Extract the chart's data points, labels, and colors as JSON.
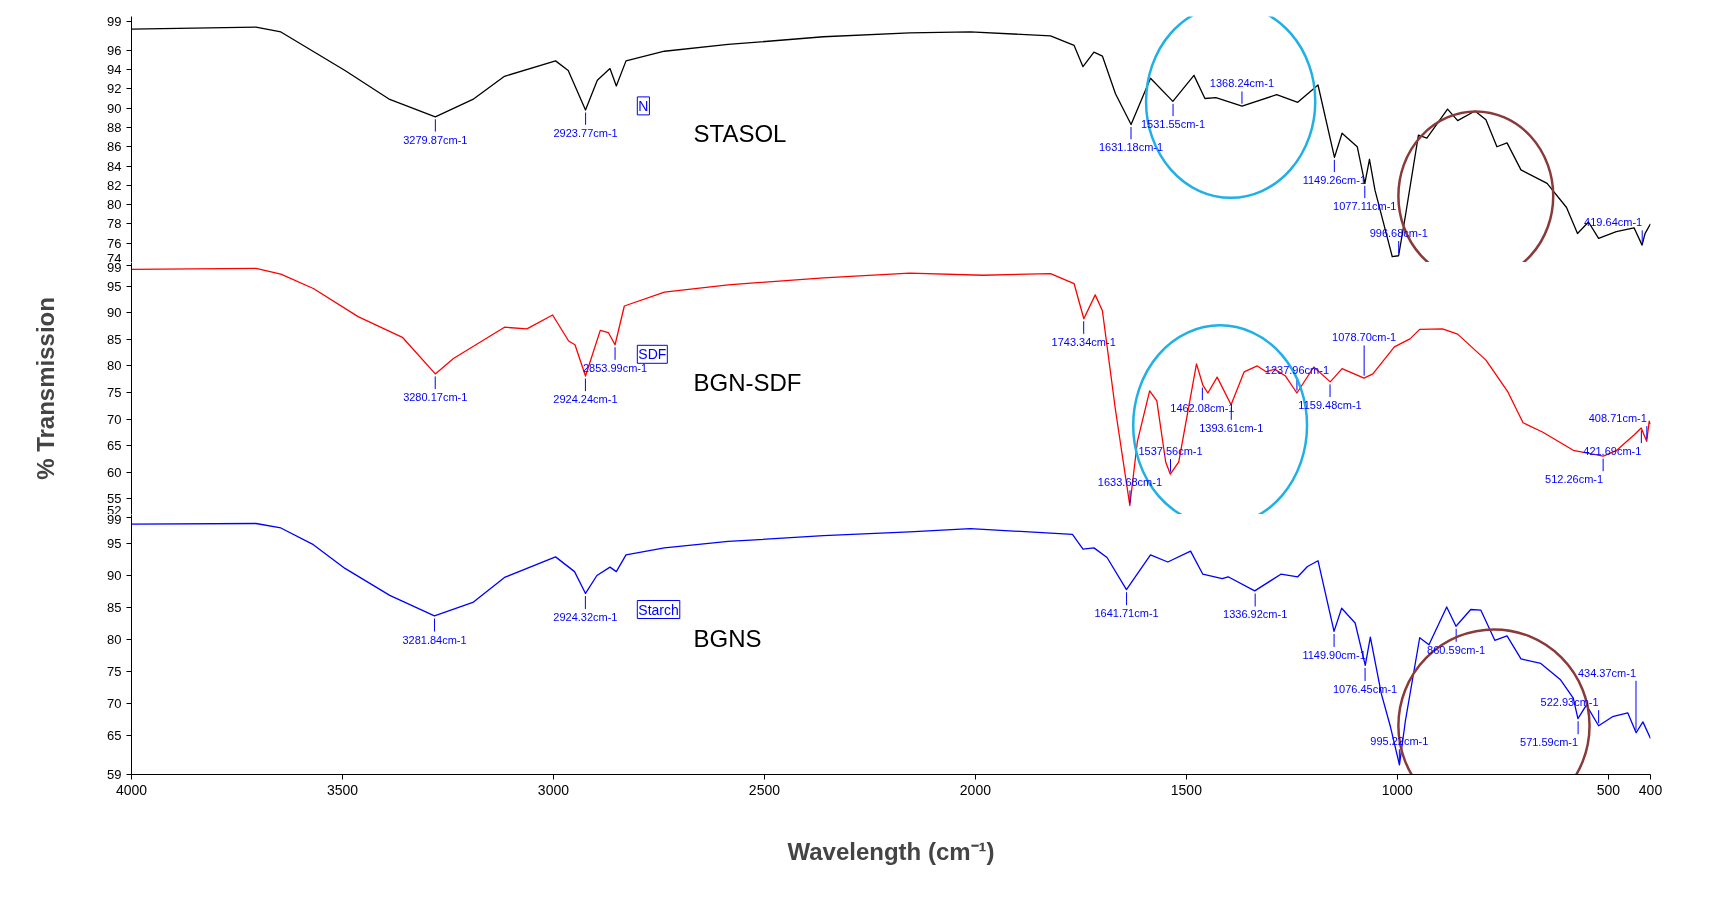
{
  "chart_data": [
    {
      "type": "line",
      "xlim": [
        4000,
        400
      ],
      "xticks": [
        4000,
        3500,
        3000,
        2500,
        2000,
        1500,
        1000,
        500,
        400
      ],
      "ylim": [
        74,
        99.5
      ],
      "yticks": [
        74,
        76,
        78,
        80,
        82,
        84,
        86,
        88,
        90,
        92,
        94,
        96,
        99
      ],
      "tick_labels": "y",
      "series": [
        {
          "name": "STASOL",
          "color": "#000000",
          "x": [
            4000,
            3705,
            3646,
            3494,
            3388,
            3280,
            3191,
            3116,
            2995,
            2965,
            2924,
            2896,
            2866,
            2851,
            2828,
            2737,
            2586,
            2360,
            2156,
            2012,
            1822,
            1766,
            1745,
            1719,
            1699,
            1668,
            1631,
            1585,
            1532,
            1482,
            1456,
            1430,
            1368,
            1286,
            1236,
            1188,
            1149,
            1131,
            1095,
            1077,
            1066,
            1053,
            1012,
            997,
            981,
            950,
            930,
            881,
            857,
            816,
            790,
            764,
            740,
            707,
            645,
            599,
            573,
            547,
            523,
            481,
            439,
            420,
            413,
            400
          ],
          "values": [
            98.2,
            98.4,
            97.9,
            93.9,
            90.9,
            89.1,
            90.9,
            93.3,
            94.9,
            93.9,
            89.8,
            92.9,
            94.1,
            92.3,
            94.9,
            95.9,
            96.6,
            97.4,
            97.8,
            97.9,
            97.5,
            96.5,
            94.3,
            95.8,
            95.4,
            91.5,
            88.3,
            93.1,
            90.7,
            93.4,
            91.0,
            91.1,
            90.2,
            91.4,
            90.6,
            92.4,
            84.9,
            87.4,
            86.0,
            82.2,
            84.7,
            81.5,
            74.6,
            74.7,
            78.8,
            87.2,
            86.9,
            89.9,
            88.7,
            89.7,
            88.8,
            86.0,
            86.4,
            83.6,
            82.2,
            79.7,
            77.0,
            78.2,
            76.5,
            77.2,
            77.6,
            75.8,
            77.0,
            78.0
          ]
        }
      ],
      "annotations": [
        {
          "text": "3279.87cm-1",
          "x": 3279.87,
          "y": 89.1
        },
        {
          "text": "2923.77cm-1",
          "x": 2923.77,
          "y": 89.8
        },
        {
          "text": "1631.18cm-1",
          "x": 1631.18,
          "y": 88.3
        },
        {
          "text": "1531.55cm-1",
          "x": 1531.55,
          "y": 90.7
        },
        {
          "text": "1368.24cm-1",
          "x": 1368.24,
          "y": 90.2
        },
        {
          "text": "1149.26cm-1",
          "x": 1149.26,
          "y": 84.9
        },
        {
          "text": "1077.11cm-1",
          "x": 1077.11,
          "y": 82.2
        },
        {
          "text": "996.68cm-1",
          "x": 996.68,
          "y": 74.7
        },
        {
          "text": "419.64cm-1",
          "x": 419.64,
          "y": 75.8
        },
        "N"
      ]
    },
    {
      "type": "line",
      "xlim": [
        4000,
        400
      ],
      "xticks": [
        4000,
        3500,
        3000,
        2500,
        2000,
        1500,
        1000,
        500,
        400
      ],
      "ylim": [
        52,
        99.5
      ],
      "yticks": [
        52,
        55,
        60,
        65,
        70,
        75,
        80,
        85,
        90,
        95,
        99
      ],
      "tick_labels": "y",
      "ylabel": "% Transmission",
      "series": [
        {
          "name": "BGN-SDF",
          "color": "#ff0000",
          "x": [
            4000,
            3705,
            3646,
            3569,
            3463,
            3358,
            3280,
            3237,
            3116,
            3063,
            3002,
            2964,
            2949,
            2924,
            2889,
            2870,
            2854,
            2832,
            2737,
            2586,
            2360,
            2156,
            1982,
            1822,
            1766,
            1743,
            1716,
            1699,
            1668,
            1634,
            1616,
            1587,
            1570,
            1549,
            1538,
            1518,
            1476,
            1461,
            1449,
            1427,
            1394,
            1363,
            1332,
            1311,
            1291,
            1265,
            1238,
            1198,
            1159,
            1131,
            1079,
            1058,
            1007,
            970,
            947,
            893,
            857,
            790,
            738,
            702,
            655,
            583,
            512,
            480,
            439,
            422,
            409,
            403,
            400
          ],
          "values": [
            98.2,
            98.4,
            97.3,
            94.6,
            89.3,
            85.4,
            78.5,
            81.4,
            87.3,
            87.0,
            89.6,
            84.7,
            84.0,
            78.1,
            86.7,
            86.3,
            84.0,
            91.3,
            93.9,
            95.3,
            96.6,
            97.5,
            97.1,
            97.4,
            95.5,
            88.9,
            93.4,
            90.4,
            71.7,
            53.7,
            65.8,
            75.3,
            73.4,
            61.9,
            59.6,
            61.9,
            80.4,
            76.4,
            74.9,
            77.9,
            72.7,
            78.9,
            80.0,
            78.9,
            79.4,
            78.1,
            74.9,
            79.8,
            77.0,
            79.5,
            77.7,
            78.5,
            83.6,
            85.1,
            86.9,
            87.0,
            86.0,
            81.1,
            75.1,
            69.3,
            67.5,
            64.1,
            63.0,
            64.1,
            67.0,
            68.3,
            65.8,
            69.6,
            69.0
          ]
        }
      ],
      "annotations": [
        {
          "text": "3280.17cm-1",
          "x": 3280.17,
          "y": 78.5
        },
        {
          "text": "2924.24cm-1",
          "x": 2924.24,
          "y": 78.1
        },
        {
          "text": "2853.99cm-1",
          "x": 2853.99,
          "y": 84.0
        },
        {
          "text": "1743.34cm-1",
          "x": 1743.34,
          "y": 88.9
        },
        {
          "text": "1633.68cm-1",
          "x": 1633.68,
          "y": 53.7
        },
        {
          "text": "1537.56cm-1",
          "x": 1537.56,
          "y": 59.6
        },
        {
          "text": "1462.08cm-1",
          "x": 1462.08,
          "y": 76.4
        },
        {
          "text": "1393.61cm-1",
          "x": 1393.61,
          "y": 72.7
        },
        {
          "text": "1237.96cm-1",
          "x": 1237.96,
          "y": 74.9
        },
        {
          "text": "1159.48cm-1",
          "x": 1159.48,
          "y": 77.0
        },
        {
          "text": "1078.70cm-1",
          "x": 1078.7,
          "y": 77.7
        },
        {
          "text": "512.26cm-1",
          "x": 512.26,
          "y": 63.0
        },
        {
          "text": "421.69cm-1",
          "x": 421.69,
          "y": 68.3
        },
        {
          "text": "408.71cm-1",
          "x": 408.71,
          "y": 65.8
        },
        "SDF"
      ]
    },
    {
      "type": "line",
      "xlim": [
        4000,
        400
      ],
      "xticks": [
        4000,
        3500,
        3000,
        2500,
        2000,
        1500,
        1000,
        500,
        400
      ],
      "ylim": [
        59,
        99.5
      ],
      "yticks": [
        59,
        65,
        70,
        75,
        80,
        85,
        90,
        95,
        99
      ],
      "xlabel": "Wavelength (cm⁻¹)",
      "series": [
        {
          "name": "BGNS",
          "color": "#0000ff",
          "x": [
            4000,
            3705,
            3646,
            3569,
            3494,
            3388,
            3282,
            3191,
            3116,
            2995,
            2950,
            2924,
            2897,
            2866,
            2851,
            2828,
            2737,
            2586,
            2360,
            2156,
            2012,
            1770,
            1745,
            1719,
            1688,
            1642,
            1585,
            1544,
            1490,
            1461,
            1415,
            1401,
            1338,
            1276,
            1236,
            1213,
            1188,
            1150,
            1132,
            1100,
            1076,
            1064,
            1038,
            1017,
            995,
            981,
            947,
            925,
            883,
            861,
            826,
            802,
            769,
            740,
            707,
            660,
            614,
            583,
            572,
            552,
            523,
            490,
            454,
            434,
            418,
            400
          ],
          "values": [
            98.0,
            98.1,
            97.4,
            94.8,
            91.1,
            86.9,
            83.7,
            85.8,
            89.7,
            92.9,
            90.6,
            87.2,
            90.0,
            91.3,
            90.6,
            93.2,
            94.3,
            95.3,
            96.2,
            96.8,
            97.3,
            96.4,
            94.1,
            94.3,
            92.8,
            87.8,
            93.2,
            92.1,
            93.8,
            90.2,
            89.5,
            89.8,
            87.6,
            90.2,
            89.8,
            91.4,
            92.3,
            81.3,
            84.9,
            82.6,
            76.0,
            80.4,
            71.6,
            66.6,
            60.5,
            67.3,
            80.3,
            79.2,
            85.1,
            82.1,
            84.7,
            84.6,
            79.9,
            80.6,
            77.0,
            76.3,
            73.8,
            70.9,
            67.7,
            69.8,
            66.6,
            68.0,
            68.6,
            65.5,
            67.2,
            64.6
          ]
        }
      ],
      "annotations": [
        {
          "text": "3281.84cm-1",
          "x": 3281.84,
          "y": 83.7
        },
        {
          "text": "2924.32cm-1",
          "x": 2924.32,
          "y": 87.2
        },
        {
          "text": "1641.71cm-1",
          "x": 1641.71,
          "y": 87.8
        },
        {
          "text": "1336.92cm-1",
          "x": 1336.92,
          "y": 87.6
        },
        {
          "text": "1149.90cm-1",
          "x": 1149.9,
          "y": 81.3
        },
        {
          "text": "1076.45cm-1",
          "x": 1076.45,
          "y": 76.0
        },
        {
          "text": "995.22cm-1",
          "x": 995.22,
          "y": 60.5
        },
        {
          "text": "860.59cm-1",
          "x": 860.59,
          "y": 82.1
        },
        {
          "text": "571.59cm-1",
          "x": 571.59,
          "y": 67.7
        },
        {
          "text": "522.93cm-1",
          "x": 522.93,
          "y": 66.6
        },
        {
          "text": "434.37cm-1",
          "x": 434.37,
          "y": 65.5
        },
        "Starch"
      ]
    }
  ]
}
